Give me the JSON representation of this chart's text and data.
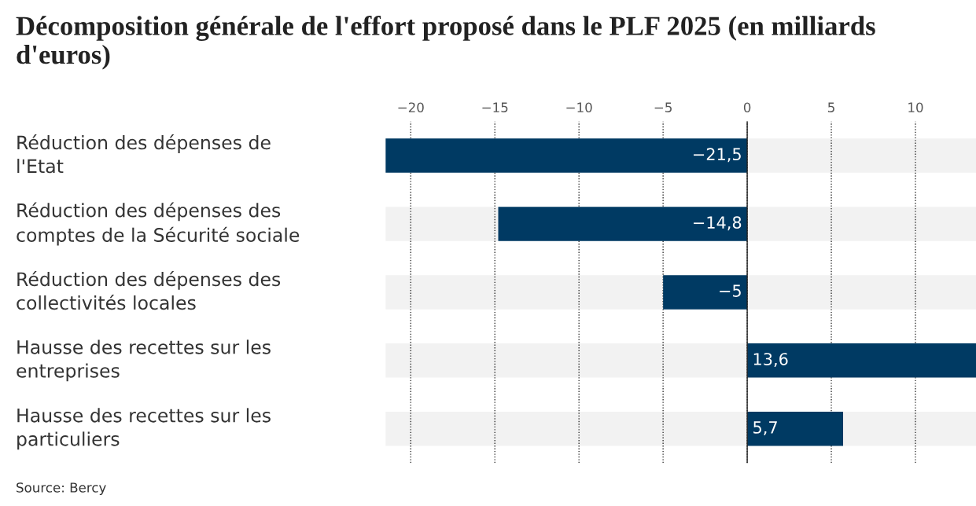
{
  "chart_data": {
    "type": "bar",
    "orientation": "horizontal",
    "title": "Décomposition générale de l'effort proposé dans le PLF 2025 (en milliards d'euros)",
    "categories": [
      "Réduction des dépenses de\nl'Etat",
      "Réduction des dépenses des\ncomptes de la Sécurité sociale",
      "Réduction des dépenses des\ncollectivités locales",
      "Hausse des recettes sur les\nentreprises",
      "Hausse des recettes sur les\nparticuliers"
    ],
    "values": [
      -21.5,
      -14.8,
      -5,
      13.6,
      5.7
    ],
    "value_labels": [
      "−21,5",
      "−14,8",
      "−5",
      "13,6",
      "5,7"
    ],
    "color": "#003a63",
    "xlim": [
      -21.5,
      13.6
    ],
    "xticks": [
      {
        "value": -20,
        "label": "−20"
      },
      {
        "value": -15,
        "label": "−15"
      },
      {
        "value": -10,
        "label": "−10"
      },
      {
        "value": -5,
        "label": "−5"
      },
      0,
      5,
      10
    ],
    "grid": "x",
    "annotations": [
      "Source: Bercy"
    ]
  }
}
